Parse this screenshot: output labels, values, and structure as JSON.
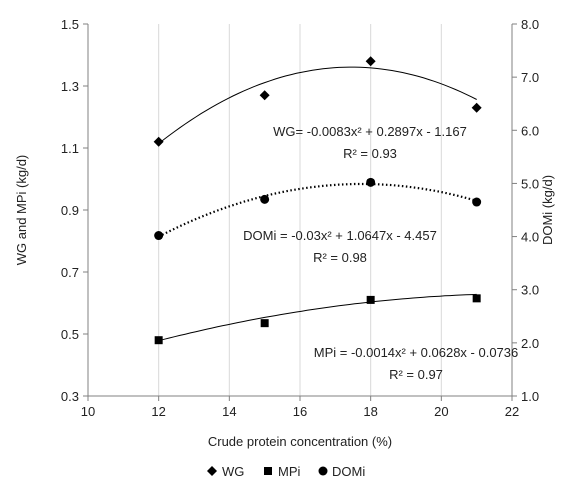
{
  "chart_data": {
    "type": "scatter",
    "xlabel": "Crude protein concentration (%)",
    "ylabel": "WG and MPi (kg/d)",
    "y2label": "DOMi (kg/d)",
    "xlim": [
      10,
      22
    ],
    "ylim": [
      0.3,
      1.5
    ],
    "y2lim": [
      1.0,
      8.0
    ],
    "xticks": [
      "10",
      "12",
      "14",
      "16",
      "18",
      "20",
      "22"
    ],
    "yticks": [
      "0.3",
      "0.5",
      "0.7",
      "0.9",
      "1.1",
      "1.3",
      "1.5"
    ],
    "y2ticks": [
      "1.0",
      "2.0",
      "3.0",
      "4.0",
      "5.0",
      "6.0",
      "7.0",
      "8.0"
    ],
    "grid": "vertical-x-gridlines",
    "legend_placement": "bottom-center",
    "series": [
      {
        "name": "WG",
        "marker": "diamond",
        "axis": "left",
        "line_style": "solid",
        "x": [
          12,
          15,
          18,
          21
        ],
        "y": [
          1.12,
          1.27,
          1.38,
          1.23
        ],
        "fit": {
          "a": -0.0083,
          "b": 0.2897,
          "c": -1.167
        },
        "equation": "WG= -0.0083x² + 0.2897x - 1.167",
        "r2": "R² = 0.93"
      },
      {
        "name": "MPi",
        "marker": "square",
        "axis": "left",
        "line_style": "solid",
        "x": [
          12,
          15,
          18,
          21
        ],
        "y": [
          0.48,
          0.535,
          0.61,
          0.615
        ],
        "fit": {
          "a": -0.0014,
          "b": 0.0628,
          "c": -0.0736
        },
        "equation": "MPi = -0.0014x² + 0.0628x - 0.0736",
        "r2": "R² = 0.97"
      },
      {
        "name": "DOMi",
        "marker": "circle",
        "axis": "right",
        "line_style": "dotted",
        "x": [
          12,
          15,
          18,
          21
        ],
        "y": [
          4.02,
          4.7,
          5.02,
          4.65
        ],
        "fit": {
          "a": -0.03,
          "b": 1.0647,
          "c": -4.457
        },
        "equation": "DOMi = -0.03x² + 1.0647x - 4.457",
        "r2": "R² = 0.98"
      }
    ]
  }
}
